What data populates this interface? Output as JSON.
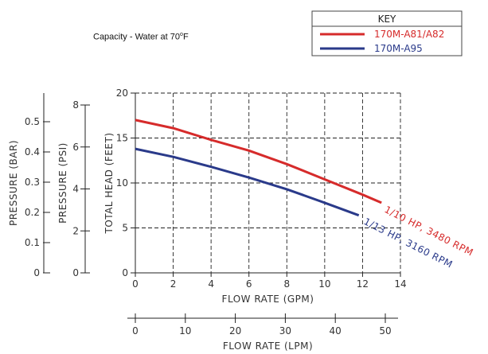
{
  "caption": {
    "text": "Capacity - Water at 70",
    "deg": "o",
    "unit": "F"
  },
  "chart_data": {
    "type": "line",
    "xlabel": "FLOW RATE (GPM)",
    "ylabel": "TOTAL HEAD (FEET)",
    "xlim": [
      0,
      14
    ],
    "ylim": [
      0,
      20
    ],
    "x_ticks": [
      0,
      2,
      4,
      6,
      8,
      10,
      12,
      14
    ],
    "y_ticks": [
      0,
      5,
      10,
      15,
      20
    ],
    "grid": true,
    "secondary_axes": {
      "psi": {
        "label": "PRESSURE (PSI)",
        "ticks": [
          "0",
          "2",
          "4",
          "6",
          "8"
        ]
      },
      "bar": {
        "label": "PRESSURE (BAR)",
        "ticks": [
          "0",
          "0.1",
          "0.2",
          "0.3",
          "0.4",
          "0.5"
        ]
      },
      "lpm": {
        "label": "FLOW RATE (LPM)",
        "ticks": [
          "0",
          "10",
          "20",
          "30",
          "40",
          "50"
        ]
      }
    },
    "legend": {
      "title": "KEY",
      "placement": "top-right"
    },
    "series": [
      {
        "name": "170M-A81/A82",
        "annotation": "1/10 HP, 3480 RPM",
        "color": "#d62b2b",
        "points": [
          [
            0,
            17.0
          ],
          [
            2,
            16.1
          ],
          [
            4,
            14.8
          ],
          [
            6,
            13.6
          ],
          [
            8,
            12.1
          ],
          [
            10,
            10.4
          ],
          [
            12,
            8.7
          ],
          [
            13,
            7.8
          ]
        ]
      },
      {
        "name": "170M-A95",
        "annotation": "1/13 HP, 3160 RPM",
        "color": "#2a3a8a",
        "points": [
          [
            0,
            13.8
          ],
          [
            2,
            12.9
          ],
          [
            4,
            11.8
          ],
          [
            6,
            10.6
          ],
          [
            8,
            9.3
          ],
          [
            10,
            7.8
          ],
          [
            11.8,
            6.4
          ]
        ]
      }
    ]
  }
}
